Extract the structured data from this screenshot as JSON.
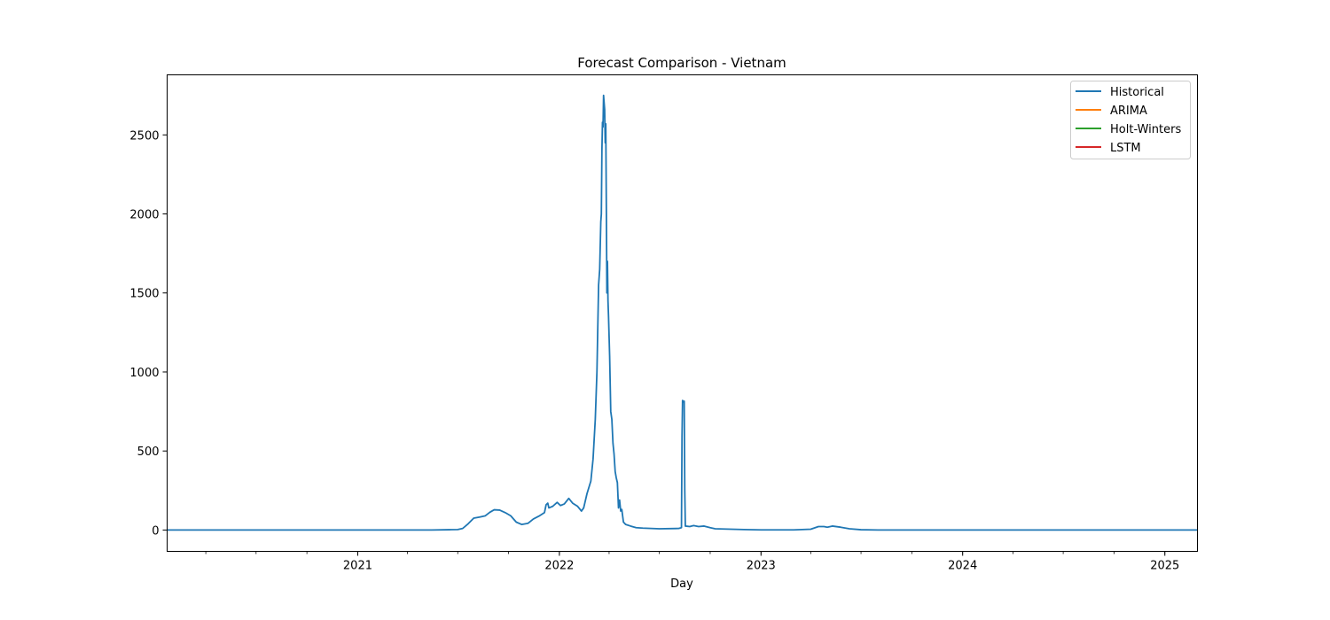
{
  "chart_data": {
    "type": "line",
    "title": "Forecast Comparison - Vietnam",
    "xlabel": "Day",
    "ylabel": "",
    "x_type": "date",
    "xlim": [
      "2020-01-22",
      "2025-03-01"
    ],
    "ylim": [
      -135,
      2880
    ],
    "x_tick_labels": [
      "2021",
      "2022",
      "2023",
      "2024",
      "2025"
    ],
    "x_ticks": [
      "2021-01-01",
      "2022-01-01",
      "2023-01-01",
      "2024-01-01",
      "2025-01-01"
    ],
    "y_ticks": [
      0,
      500,
      1000,
      1500,
      2000,
      2500
    ],
    "y_tick_labels": [
      "0",
      "500",
      "1000",
      "1500",
      "2000",
      "2500"
    ],
    "grid": false,
    "legend_position": "top-right",
    "series": [
      {
        "name": "Historical",
        "color": "#1f77b4",
        "points": [
          [
            "2020-01-22",
            0
          ],
          [
            "2021-03-01",
            0
          ],
          [
            "2021-05-15",
            0
          ],
          [
            "2021-06-15",
            2
          ],
          [
            "2021-07-01",
            3
          ],
          [
            "2021-07-10",
            10
          ],
          [
            "2021-07-20",
            40
          ],
          [
            "2021-07-30",
            75
          ],
          [
            "2021-08-10",
            82
          ],
          [
            "2021-08-20",
            90
          ],
          [
            "2021-08-28",
            112
          ],
          [
            "2021-09-05",
            128
          ],
          [
            "2021-09-15",
            126
          ],
          [
            "2021-09-25",
            110
          ],
          [
            "2021-10-05",
            90
          ],
          [
            "2021-10-15",
            50
          ],
          [
            "2021-10-25",
            35
          ],
          [
            "2021-11-05",
            42
          ],
          [
            "2021-11-15",
            70
          ],
          [
            "2021-11-25",
            88
          ],
          [
            "2021-12-05",
            110
          ],
          [
            "2021-12-08",
            160
          ],
          [
            "2021-12-11",
            170
          ],
          [
            "2021-12-13",
            140
          ],
          [
            "2021-12-20",
            150
          ],
          [
            "2021-12-28",
            175
          ],
          [
            "2022-01-03",
            155
          ],
          [
            "2022-01-10",
            165
          ],
          [
            "2022-01-18",
            200
          ],
          [
            "2022-01-25",
            170
          ],
          [
            "2022-02-03",
            150
          ],
          [
            "2022-02-10",
            120
          ],
          [
            "2022-02-14",
            140
          ],
          [
            "2022-02-20",
            230
          ],
          [
            "2022-02-27",
            310
          ],
          [
            "2022-03-03",
            450
          ],
          [
            "2022-03-07",
            700
          ],
          [
            "2022-03-10",
            1000
          ],
          [
            "2022-03-13",
            1550
          ],
          [
            "2022-03-15",
            1650
          ],
          [
            "2022-03-17",
            1950
          ],
          [
            "2022-03-18",
            2000
          ],
          [
            "2022-03-19",
            2400
          ],
          [
            "2022-03-20",
            2580
          ],
          [
            "2022-03-21",
            2550
          ],
          [
            "2022-03-22",
            2750
          ],
          [
            "2022-03-24",
            2660
          ],
          [
            "2022-03-25",
            2450
          ],
          [
            "2022-03-26",
            2570
          ],
          [
            "2022-03-27",
            2050
          ],
          [
            "2022-03-28",
            1500
          ],
          [
            "2022-03-29",
            1700
          ],
          [
            "2022-03-30",
            1450
          ],
          [
            "2022-03-31",
            1350
          ],
          [
            "2022-04-02",
            1100
          ],
          [
            "2022-04-04",
            750
          ],
          [
            "2022-04-06",
            700
          ],
          [
            "2022-04-08",
            550
          ],
          [
            "2022-04-10",
            480
          ],
          [
            "2022-04-12",
            370
          ],
          [
            "2022-04-14",
            330
          ],
          [
            "2022-04-16",
            300
          ],
          [
            "2022-04-18",
            140
          ],
          [
            "2022-04-20",
            190
          ],
          [
            "2022-04-22",
            120
          ],
          [
            "2022-04-24",
            130
          ],
          [
            "2022-04-27",
            50
          ],
          [
            "2022-05-01",
            35
          ],
          [
            "2022-05-10",
            25
          ],
          [
            "2022-05-20",
            15
          ],
          [
            "2022-06-01",
            12
          ],
          [
            "2022-07-01",
            8
          ],
          [
            "2022-08-05",
            10
          ],
          [
            "2022-08-10",
            15
          ],
          [
            "2022-08-11",
            590
          ],
          [
            "2022-08-12",
            820
          ],
          [
            "2022-08-14",
            810
          ],
          [
            "2022-08-15",
            815
          ],
          [
            "2022-08-16",
            250
          ],
          [
            "2022-08-17",
            25
          ],
          [
            "2022-08-25",
            22
          ],
          [
            "2022-09-01",
            28
          ],
          [
            "2022-09-10",
            22
          ],
          [
            "2022-09-20",
            25
          ],
          [
            "2022-10-01",
            15
          ],
          [
            "2022-10-10",
            8
          ],
          [
            "2022-11-01",
            6
          ],
          [
            "2022-12-01",
            3
          ],
          [
            "2023-01-01",
            1
          ],
          [
            "2023-03-01",
            1
          ],
          [
            "2023-04-01",
            5
          ],
          [
            "2023-04-15",
            22
          ],
          [
            "2023-04-25",
            22
          ],
          [
            "2023-05-01",
            18
          ],
          [
            "2023-05-10",
            25
          ],
          [
            "2023-05-25",
            18
          ],
          [
            "2023-06-10",
            8
          ],
          [
            "2023-07-01",
            2
          ],
          [
            "2023-08-01",
            0
          ],
          [
            "2025-03-01",
            0
          ]
        ]
      },
      {
        "name": "ARIMA",
        "color": "#ff7f0e",
        "points": []
      },
      {
        "name": "Holt-Winters",
        "color": "#2ca02c",
        "points": []
      },
      {
        "name": "LSTM",
        "color": "#d62728",
        "points": []
      }
    ]
  }
}
